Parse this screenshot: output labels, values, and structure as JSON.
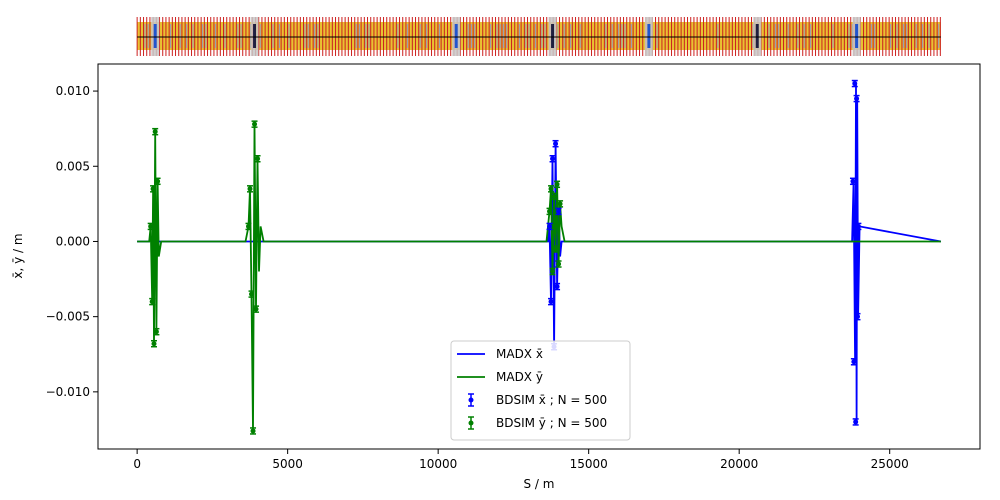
{
  "chart_data": {
    "type": "line",
    "title": "",
    "xlabel": "S / m",
    "ylabel": "x̄, ȳ / m",
    "xlim": [
      -1300,
      28000
    ],
    "ylim": [
      -0.0138,
      0.0118
    ],
    "xticks": [
      0,
      5000,
      10000,
      15000,
      20000,
      25000
    ],
    "xtick_labels": [
      "0",
      "5000",
      "10000",
      "15000",
      "20000",
      "25000"
    ],
    "yticks": [
      -0.01,
      -0.005,
      0.0,
      0.005,
      0.01
    ],
    "ytick_labels": [
      "−0.010",
      "−0.005",
      "0.000",
      "0.005",
      "0.010"
    ],
    "grid": false,
    "legend_position": "lower-center",
    "series": [
      {
        "name": "MADX x̄",
        "kind": "line",
        "color": "#0000ff",
        "x": [
          0,
          400,
          500,
          520,
          560,
          600,
          650,
          700,
          3800,
          3900,
          4000,
          13650,
          13700,
          13750,
          13800,
          13850,
          13900,
          13950,
          14000,
          14050,
          14100,
          23750,
          23800,
          23850,
          23880,
          23900,
          23920,
          23950,
          24000,
          26700
        ],
        "y": [
          0,
          0,
          0.0003,
          -0.0002,
          0.0002,
          -0.0001,
          0.0001,
          0,
          0,
          0,
          0,
          0,
          0.001,
          -0.004,
          0.0055,
          -0.007,
          0.0065,
          -0.003,
          0.002,
          -0.001,
          0,
          0,
          0.004,
          -0.008,
          0.0105,
          -0.012,
          0.0095,
          -0.005,
          0.001,
          0
        ]
      },
      {
        "name": "MADX ȳ",
        "kind": "line",
        "color": "#008000",
        "x": [
          0,
          400,
          450,
          500,
          530,
          560,
          600,
          640,
          680,
          720,
          800,
          3600,
          3700,
          3750,
          3800,
          3850,
          3900,
          3950,
          4000,
          4050,
          4100,
          4200,
          13600,
          13700,
          13750,
          13800,
          13850,
          13900,
          13950,
          14000,
          14050,
          14100,
          14200,
          26700
        ],
        "y": [
          0,
          0,
          0.001,
          -0.004,
          0.0035,
          -0.0068,
          0.0073,
          -0.006,
          0.004,
          -0.001,
          0,
          0,
          0.001,
          0.0035,
          -0.0035,
          -0.0126,
          0.0078,
          -0.0045,
          0.0055,
          -0.002,
          0.001,
          0,
          0,
          0.002,
          0.0035,
          -0.002,
          0.003,
          -0.0005,
          0.0038,
          -0.0015,
          0.0025,
          0.001,
          0,
          0
        ]
      },
      {
        "name": "BDSIM x̄ ; N = 500",
        "kind": "errorbar",
        "color": "#0000ff",
        "x": [
          13700,
          13750,
          13800,
          13850,
          13900,
          13950,
          14000,
          23780,
          23810,
          23840,
          23870,
          23900,
          23930,
          23960
        ],
        "y": [
          0.001,
          -0.004,
          0.0055,
          -0.007,
          0.0065,
          -0.003,
          0.002,
          0.004,
          -0.008,
          0.0105,
          -0.012,
          0.0095,
          -0.005,
          0.001
        ]
      },
      {
        "name": "BDSIM ȳ ; N = 500",
        "kind": "errorbar",
        "color": "#008000",
        "x": [
          450,
          500,
          530,
          560,
          600,
          640,
          680,
          3700,
          3750,
          3800,
          3850,
          3900,
          3950,
          4000,
          13700,
          13750,
          13800,
          13850,
          13900,
          13950,
          14000,
          14050
        ],
        "y": [
          0.001,
          -0.004,
          0.0035,
          -0.0068,
          0.0073,
          -0.006,
          0.004,
          0.001,
          0.0035,
          -0.0035,
          -0.0126,
          0.0078,
          -0.0045,
          0.0055,
          0.002,
          0.0035,
          -0.002,
          0.003,
          -0.0005,
          0.0038,
          -0.0015,
          0.0025
        ]
      }
    ],
    "lattice_strip": {
      "present": true,
      "colors": {
        "dipole": "#e8c232",
        "quadrupole": "#cc1f1f",
        "sextupole": "#2255cc",
        "drift": "#c8c8c8",
        "beamline": "#000000"
      }
    }
  }
}
